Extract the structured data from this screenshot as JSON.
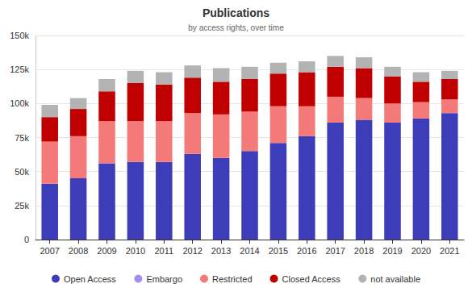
{
  "chart_data": {
    "type": "bar",
    "title": "Publications",
    "subtitle": "by access rights, over time",
    "categories": [
      "2007",
      "2008",
      "2009",
      "2010",
      "2011",
      "2012",
      "2013",
      "2014",
      "2015",
      "2016",
      "2017",
      "2018",
      "2019",
      "2020",
      "2021"
    ],
    "series": [
      {
        "name": "Open Access",
        "color": "#3d3dba",
        "values": [
          41000,
          45000,
          56000,
          57000,
          57000,
          63000,
          60000,
          65000,
          71000,
          76000,
          86000,
          88000,
          86000,
          89000,
          93000
        ]
      },
      {
        "name": "Embargo",
        "color": "#a58cf0",
        "values": [
          0,
          0,
          0,
          0,
          0,
          0,
          0,
          0,
          0,
          0,
          0,
          0,
          0,
          0,
          0
        ]
      },
      {
        "name": "Restricted",
        "color": "#f47a7a",
        "values": [
          31000,
          31000,
          31000,
          30000,
          30000,
          30000,
          32000,
          29000,
          27000,
          22000,
          19000,
          16000,
          14000,
          12000,
          10000
        ]
      },
      {
        "name": "Closed Access",
        "color": "#c00000",
        "values": [
          18000,
          20000,
          22000,
          28000,
          27000,
          26000,
          24000,
          24000,
          24000,
          25000,
          22000,
          22000,
          20000,
          15000,
          15000
        ]
      },
      {
        "name": "not available",
        "color": "#b3b3b3",
        "values": [
          9000,
          8000,
          9000,
          9000,
          9000,
          9000,
          10000,
          9000,
          8000,
          8000,
          8000,
          8000,
          7000,
          7000,
          6000
        ]
      }
    ],
    "stacked": true,
    "ylim": [
      0,
      150000
    ],
    "yticks": [
      0,
      {
        "value": 25000,
        "label": "25k"
      },
      {
        "value": 50000,
        "label": "50k"
      },
      {
        "value": 75000,
        "label": "75k"
      },
      {
        "value": 100000,
        "label": "100k"
      },
      {
        "value": 125000,
        "label": "125k"
      },
      {
        "value": 150000,
        "label": "150k"
      }
    ],
    "grid": true,
    "legend": "bottom"
  }
}
